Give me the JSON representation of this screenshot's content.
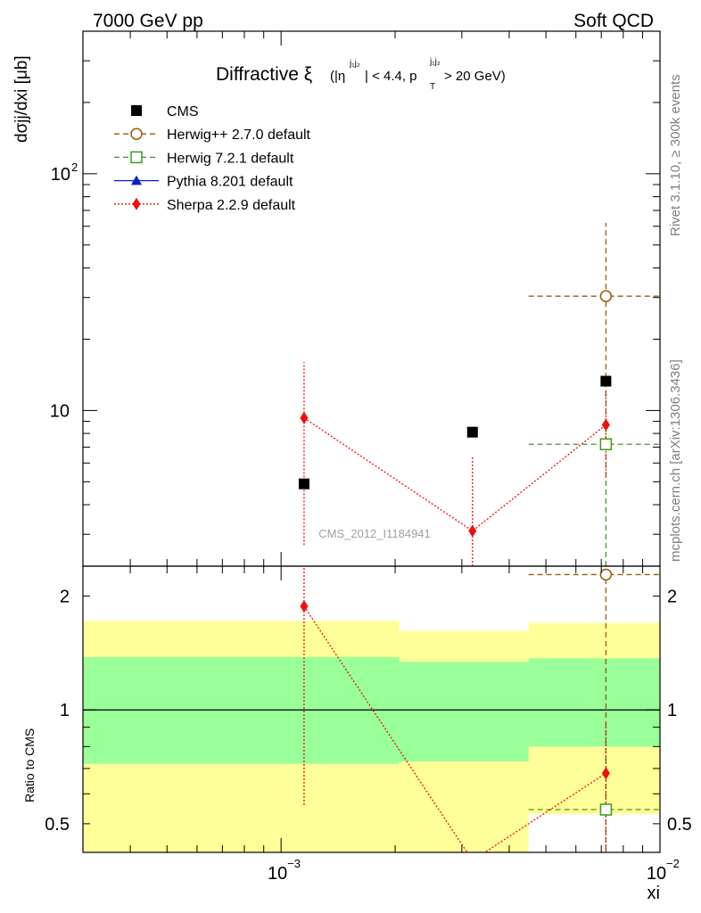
{
  "header": {
    "left": "7000 GeV pp",
    "right": "Soft QCD"
  },
  "side_labels": {
    "rivet": "Rivet 3.1.10, ≥ 300k events",
    "mcplots": "mcplots.cern.ch [arXiv:1306.3436]"
  },
  "reference": "CMS_2012_I1184941",
  "chart_data": [
    {
      "panel": "main",
      "type": "scatter",
      "title": {
        "main": "Diffractive ξ",
        "cut1_pre": "(|η",
        "cut1_sup": "j₁j₂",
        "cut1_post": "| < 4.4, p",
        "cut2_sub": "T",
        "cut2_sup": "j₁j₂",
        "cut2_post": " > 20 GeV)"
      },
      "ylabel": "dσjj/dxi [μb]",
      "xscale": "log",
      "yscale": "log",
      "xlim": [
        0.0003,
        0.01
      ],
      "ylim": [
        2.2,
        400
      ],
      "y_tick_labels": [
        {
          "value": 10,
          "label": "10",
          "sup": ""
        },
        {
          "value": 100,
          "label": "10",
          "sup": "2"
        }
      ],
      "legend_position": "top-left",
      "series": [
        {
          "name": "CMS",
          "color": "#000000",
          "marker": "square-filled",
          "line": "none",
          "points": [
            {
              "x": 0.00115,
              "y": 4.9
            },
            {
              "x": 0.0032,
              "y": 8.1
            },
            {
              "x": 0.0072,
              "y": 13.3
            }
          ]
        },
        {
          "name": "Herwig++ 2.7.0 default",
          "color": "#a05a0a",
          "marker": "circle-open",
          "line": "dashed",
          "points": [
            {
              "x": 0.0072,
              "xlo": 0.0045,
              "xhi": 0.01,
              "y": 30.4,
              "ylo": 11.5,
              "yhi": 62
            }
          ]
        },
        {
          "name": "Herwig 7.2.1 default",
          "color": "#3f9a1c",
          "marker": "square-open",
          "line": "dashed",
          "points": [
            {
              "x": 0.0072,
              "xlo": 0.0045,
              "xhi": 0.01,
              "y": 7.2,
              "ylo": 2.2,
              "yhi": 12
            }
          ]
        },
        {
          "name": "Pythia 8.201 default",
          "color": "#0a1ecf",
          "marker": "triangle-filled",
          "line": "solid",
          "points": []
        },
        {
          "name": "Sherpa 2.2.9 default",
          "color": "#ef0f0f",
          "marker": "diamond-filled",
          "line": "dotted",
          "points": [
            {
              "x": 0.00115,
              "y": 9.3,
              "ylo": 2.7,
              "yhi": 16
            },
            {
              "x": 0.0032,
              "y": 3.1,
              "ylo": 2.2,
              "yhi": 6.4
            },
            {
              "x": 0.0072,
              "y": 8.7,
              "ylo": 5.2,
              "yhi": 12.2
            }
          ]
        }
      ]
    },
    {
      "panel": "ratio",
      "type": "scatter",
      "ylabel": "Ratio to CMS",
      "xlabel": "xi",
      "xscale": "log",
      "yscale": "log",
      "xlim": [
        0.0003,
        0.01
      ],
      "ylim": [
        0.42,
        2.4
      ],
      "x_tick_labels": [
        {
          "value": 0.001,
          "label": "10",
          "sup": "−3"
        },
        {
          "value": 0.01,
          "label": "10",
          "sup": "−2"
        }
      ],
      "y_tick_labels": [
        {
          "value": 0.5,
          "label": "0.5"
        },
        {
          "value": 1,
          "label": "1"
        },
        {
          "value": 2,
          "label": "2"
        }
      ],
      "bands": [
        {
          "x0": 0.0003,
          "x1": 0.00205,
          "stat_lo": 0.72,
          "stat_hi": 1.38,
          "tot_lo": 0.38,
          "tot_hi": 1.72
        },
        {
          "x0": 0.00205,
          "x1": 0.0045,
          "stat_lo": 0.73,
          "stat_hi": 1.34,
          "tot_lo": 0.38,
          "tot_hi": 1.62
        },
        {
          "x0": 0.0045,
          "x1": 0.01,
          "stat_lo": 0.8,
          "stat_hi": 1.37,
          "tot_lo": 0.53,
          "tot_hi": 1.7
        }
      ],
      "band_colors": {
        "stat": "#99ff99",
        "total": "#ffff99"
      },
      "series": [
        {
          "name": "Herwig++ 2.7.0 default",
          "color": "#a05a0a",
          "marker": "circle-open",
          "line": "dashed",
          "points": [
            {
              "x": 0.0072,
              "xlo": 0.0045,
              "xhi": 0.01,
              "y": 2.28,
              "ylo": 0.4,
              "yhi": 2.4
            }
          ]
        },
        {
          "name": "Herwig 7.2.1 default",
          "color": "#3f9a1c",
          "marker": "square-open",
          "line": "dashed",
          "points": [
            {
              "x": 0.0072,
              "xlo": 0.0045,
              "xhi": 0.01,
              "y": 0.545,
              "ylo": 0.4,
              "yhi": 0.9
            }
          ]
        },
        {
          "name": "Sherpa 2.2.9 default",
          "color": "#ef0f0f",
          "marker": "diamond-filled",
          "line": "dotted",
          "points": [
            {
              "x": 0.00115,
              "y": 1.88,
              "ylo": 0.56,
              "yhi": 2.4
            },
            {
              "x": 0.0032,
              "y": 0.4
            },
            {
              "x": 0.0072,
              "y": 0.68,
              "ylo": 0.4,
              "yhi": 0.92
            }
          ]
        }
      ]
    }
  ]
}
